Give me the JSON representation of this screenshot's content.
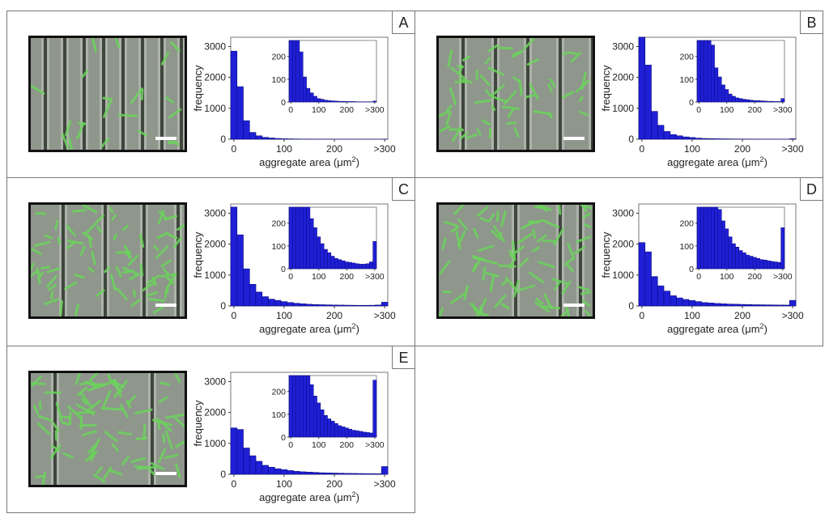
{
  "figure": {
    "panels": [
      {
        "label": "A",
        "micrograph": "green-fluorescent-aggregates-on-grooved-substrate"
      },
      {
        "label": "B",
        "micrograph": "green-fluorescent-aggregates-on-grooved-substrate"
      },
      {
        "label": "C",
        "micrograph": "green-fluorescent-aggregates-on-grooved-substrate"
      },
      {
        "label": "D",
        "micrograph": "green-fluorescent-aggregates-on-grooved-substrate"
      },
      {
        "label": "E",
        "micrograph": "green-fluorescent-aggregates-on-grooved-substrate"
      }
    ]
  },
  "colors": {
    "bar_fill": "#1f1fd6",
    "bar_stroke": "#0a0a80",
    "photo_bg": "#8f968c",
    "aggregate_green": "#6bd35c",
    "groove": "#3f463c",
    "scale_bar": "#ffffff"
  },
  "chart_data": [
    {
      "panel": "A",
      "type": "bar",
      "xlabel": "aggregate area (μm",
      "xlabel_sup": "2",
      "xlabel_close": ")",
      "ylabel": "frequency",
      "xticks": [
        "0",
        "100",
        "200",
        ">300"
      ],
      "yticks": [
        "0",
        "1000",
        "2000",
        "3000"
      ],
      "ylim": [
        0,
        3300
      ],
      "inset": {
        "xticks": [
          "0",
          "100",
          "200",
          ">300"
        ],
        "yticks": [
          "0",
          "100",
          "200"
        ],
        "ylim": [
          0,
          270
        ]
      },
      "bin_width_um2": 12.5,
      "values": [
        2850,
        1700,
        600,
        220,
        110,
        60,
        40,
        25,
        15,
        12,
        8,
        6,
        5,
        4,
        3,
        3,
        2,
        2,
        2,
        1,
        1,
        1,
        1,
        1,
        4
      ]
    },
    {
      "panel": "B",
      "type": "bar",
      "xlabel": "aggregate area (μm",
      "xlabel_sup": "2",
      "xlabel_close": ")",
      "ylabel": "frequency",
      "xticks": [
        "0",
        "100",
        "200",
        ">300"
      ],
      "yticks": [
        "0",
        "1000",
        "2000",
        "3000"
      ],
      "ylim": [
        0,
        3300
      ],
      "inset": {
        "xticks": [
          "0",
          "100",
          "200",
          ">300"
        ],
        "yticks": [
          "0",
          "100",
          "200"
        ],
        "ylim": [
          0,
          270
        ]
      },
      "bin_width_um2": 12.5,
      "values": [
        3400,
        2400,
        900,
        450,
        250,
        150,
        110,
        75,
        55,
        35,
        25,
        18,
        15,
        12,
        10,
        8,
        6,
        6,
        5,
        4,
        3,
        3,
        2,
        2,
        15
      ]
    },
    {
      "panel": "C",
      "type": "bar",
      "xlabel": "aggregate area (μm",
      "xlabel_sup": "2",
      "xlabel_close": ")",
      "ylabel": "frequency",
      "xticks": [
        "0",
        "100",
        "200",
        ">300"
      ],
      "yticks": [
        "0",
        "1000",
        "2000",
        "3000"
      ],
      "ylim": [
        0,
        3300
      ],
      "inset": {
        "xticks": [
          "0",
          "100",
          "200",
          ">300"
        ],
        "yticks": [
          "0",
          "100",
          "200"
        ],
        "ylim": [
          0,
          270
        ]
      },
      "bin_width_um2": 12.5,
      "values": [
        3200,
        2300,
        1200,
        700,
        450,
        300,
        220,
        180,
        140,
        110,
        85,
        70,
        55,
        45,
        40,
        35,
        30,
        28,
        25,
        22,
        20,
        20,
        22,
        30,
        120
      ]
    },
    {
      "panel": "D",
      "type": "bar",
      "xlabel": "aggregate area (μm",
      "xlabel_sup": "2",
      "xlabel_close": ")",
      "ylabel": "frequency",
      "xticks": [
        "0",
        "100",
        "200",
        ">300"
      ],
      "yticks": [
        "0",
        "1000",
        "2000",
        "3000"
      ],
      "ylim": [
        0,
        3300
      ],
      "inset": {
        "xticks": [
          "0",
          "100",
          "200",
          ">300"
        ],
        "yticks": [
          "0",
          "100",
          "200"
        ],
        "ylim": [
          0,
          270
        ]
      },
      "bin_width_um2": 12.5,
      "values": [
        2050,
        1750,
        950,
        650,
        480,
        330,
        260,
        210,
        175,
        140,
        110,
        95,
        80,
        70,
        60,
        55,
        50,
        45,
        40,
        38,
        35,
        32,
        30,
        28,
        180
      ]
    },
    {
      "panel": "E",
      "type": "bar",
      "xlabel": "aggregate area (μm",
      "xlabel_sup": "2",
      "xlabel_close": ")",
      "ylabel": "frequency",
      "xticks": [
        "0",
        "100",
        "200",
        ">300"
      ],
      "yticks": [
        "0",
        "1000",
        "2000",
        "3000"
      ],
      "ylim": [
        0,
        3300
      ],
      "inset": {
        "xticks": [
          "0",
          "100",
          "200",
          ">300"
        ],
        "yticks": [
          "0",
          "100",
          "200"
        ],
        "ylim": [
          0,
          270
        ]
      },
      "bin_width_um2": 12.5,
      "values": [
        1500,
        1450,
        850,
        600,
        420,
        290,
        230,
        180,
        150,
        120,
        95,
        80,
        70,
        60,
        50,
        45,
        40,
        35,
        30,
        28,
        25,
        22,
        20,
        18,
        250
      ]
    }
  ]
}
